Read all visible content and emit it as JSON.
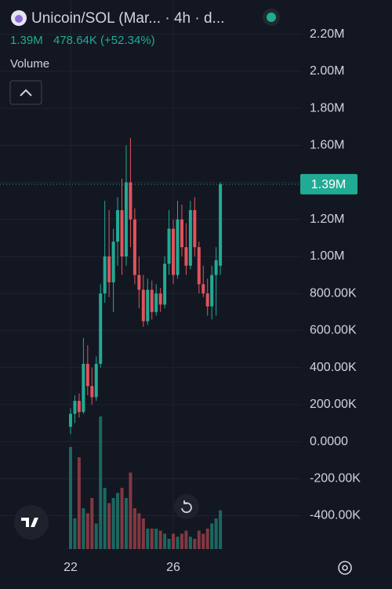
{
  "chart_data": {
    "type": "candlestick",
    "title": "Unicoin/SOL (Mar... · 4h · d...",
    "price": "1.39M",
    "change": "478.64K (+52.34%)",
    "volume_label": "Volume",
    "up_color": "#22ab94",
    "down_color": "#e0535b",
    "grid": true,
    "categories": [
      "22",
      null,
      null,
      null,
      null,
      null,
      null,
      null,
      null,
      null,
      null,
      null,
      null,
      null,
      null,
      null,
      null,
      null,
      null,
      null,
      null,
      null,
      null,
      null,
      "26",
      null,
      null,
      null,
      null,
      null,
      null,
      null,
      null,
      null,
      null,
      null
    ],
    "open": [
      80000,
      150000,
      220000,
      160000,
      420000,
      300000,
      240000,
      420000,
      800000,
      1000000,
      860000,
      1080000,
      1250000,
      1000000,
      1400000,
      1200000,
      900000,
      820000,
      650000,
      820000,
      700000,
      800000,
      740000,
      960000,
      1150000,
      900000,
      1200000,
      1050000,
      950000,
      1250000,
      1050000,
      850000,
      800000,
      730000,
      900000,
      950000
    ],
    "high": [
      180000,
      250000,
      260000,
      560000,
      520000,
      400000,
      460000,
      850000,
      1300000,
      1250000,
      1150000,
      1320000,
      1420000,
      1600000,
      1640000,
      1260000,
      1000000,
      900000,
      880000,
      870000,
      850000,
      830000,
      1000000,
      1250000,
      1200000,
      1300000,
      1280000,
      1180000,
      1300000,
      1320000,
      1080000,
      950000,
      880000,
      950000,
      1050000,
      1400000
    ],
    "low": [
      40000,
      100000,
      130000,
      150000,
      250000,
      200000,
      220000,
      400000,
      750000,
      780000,
      700000,
      950000,
      900000,
      950000,
      1050000,
      850000,
      720000,
      620000,
      630000,
      660000,
      680000,
      700000,
      720000,
      900000,
      850000,
      880000,
      1000000,
      900000,
      930000,
      1000000,
      800000,
      780000,
      680000,
      660000,
      680000,
      900000
    ],
    "close": [
      150000,
      220000,
      160000,
      420000,
      300000,
      240000,
      420000,
      800000,
      1000000,
      860000,
      1080000,
      1250000,
      1000000,
      1400000,
      1200000,
      900000,
      820000,
      650000,
      820000,
      700000,
      800000,
      740000,
      960000,
      1150000,
      900000,
      1200000,
      1050000,
      950000,
      1250000,
      1050000,
      850000,
      800000,
      730000,
      900000,
      980000,
      1390000
    ],
    "volume": [
      100,
      30,
      90,
      40,
      35,
      50,
      25,
      130,
      60,
      45,
      50,
      55,
      60,
      50,
      75,
      40,
      35,
      30,
      20,
      20,
      20,
      18,
      15,
      10,
      15,
      12,
      15,
      18,
      12,
      10,
      18,
      15,
      20,
      25,
      30,
      38
    ],
    "last_price": {
      "value": 1390000,
      "label": "1.39M"
    },
    "ylim": [
      -580000,
      2385000
    ],
    "yticks": [
      {
        "value": 2200000,
        "label": "2.20M"
      },
      {
        "value": 2000000,
        "label": "2.00M"
      },
      {
        "value": 1800000,
        "label": "1.80M"
      },
      {
        "value": 1600000,
        "label": "1.60M"
      },
      {
        "value": 1400000,
        "label": "1.40M"
      },
      {
        "value": 1200000,
        "label": "1.20M"
      },
      {
        "value": 1000000,
        "label": "1.00M"
      },
      {
        "value": 800000,
        "label": "800.00K"
      },
      {
        "value": 600000,
        "label": "600.00K"
      },
      {
        "value": 400000,
        "label": "400.00K"
      },
      {
        "value": 200000,
        "label": "200.00K"
      },
      {
        "value": 0,
        "label": "0.0000"
      },
      {
        "value": -200000,
        "label": "-200.00K"
      },
      {
        "value": -400000,
        "label": "-400.00K"
      }
    ]
  }
}
